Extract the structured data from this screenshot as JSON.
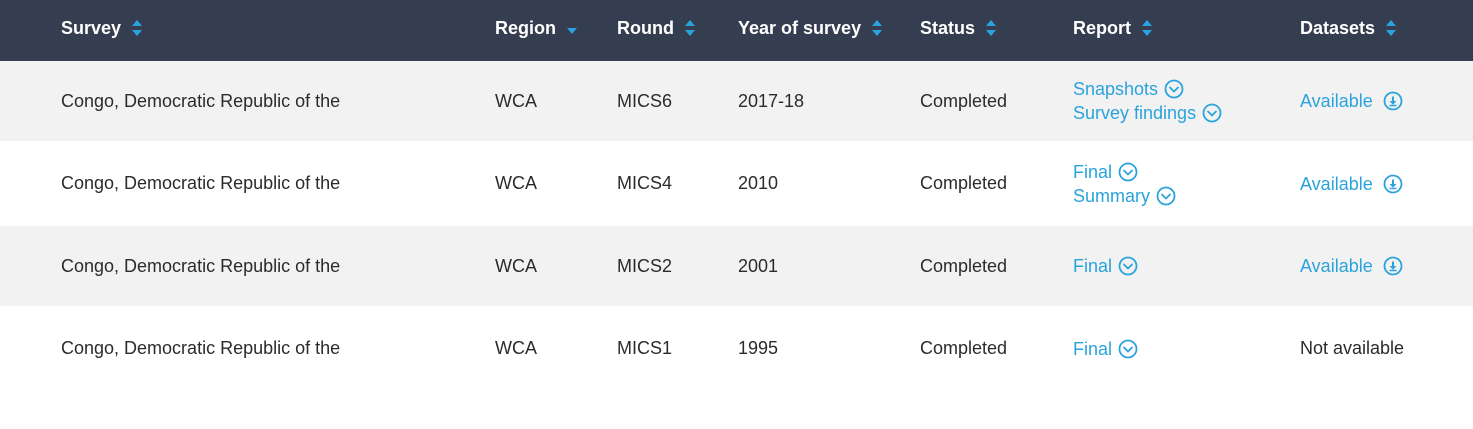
{
  "headers": {
    "survey": "Survey",
    "region": "Region",
    "round": "Round",
    "year": "Year of survey",
    "status": "Status",
    "report": "Report",
    "datasets": "Datasets"
  },
  "rows": [
    {
      "survey": "Congo, Democratic Republic of the",
      "region": "WCA",
      "round": "MICS6",
      "year": "2017-18",
      "status": "Completed",
      "reports": [
        "Snapshots",
        "Survey findings"
      ],
      "datasets": "Available",
      "datasets_available": true
    },
    {
      "survey": "Congo, Democratic Republic of the",
      "region": "WCA",
      "round": "MICS4",
      "year": "2010",
      "status": "Completed",
      "reports": [
        "Final",
        "Summary"
      ],
      "datasets": "Available",
      "datasets_available": true
    },
    {
      "survey": "Congo, Democratic Republic of the",
      "region": "WCA",
      "round": "MICS2",
      "year": "2001",
      "status": "Completed",
      "reports": [
        "Final"
      ],
      "datasets": "Available",
      "datasets_available": true
    },
    {
      "survey": "Congo, Democratic Republic of the",
      "region": "WCA",
      "round": "MICS1",
      "year": "1995",
      "status": "Completed",
      "reports": [
        "Final"
      ],
      "datasets": "Not available",
      "datasets_available": false
    }
  ],
  "colors": {
    "header_bg": "#343e50",
    "accent": "#2aa3dc",
    "row_alt": "#f2f2f2"
  },
  "icons": {
    "sort": "sort-both-icon",
    "sort_active": "sort-down-icon",
    "expand": "chevron-circle-down-icon",
    "download": "download-circle-icon"
  }
}
